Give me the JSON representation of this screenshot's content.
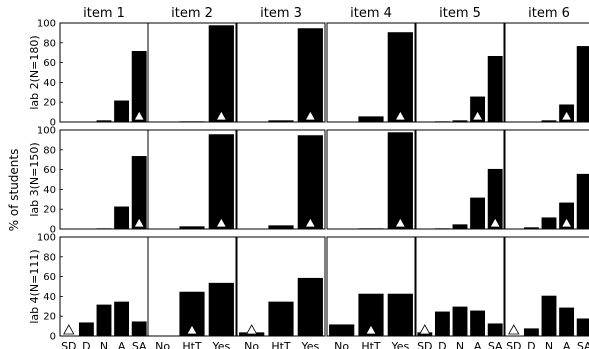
{
  "chart_data": {
    "type": "bar",
    "ylabel": "% of students",
    "ylim": [
      0,
      100
    ],
    "yticks": [
      0,
      20,
      40,
      60,
      80,
      100
    ],
    "columns": [
      "item 1",
      "item 2",
      "item 3",
      "item 4",
      "item 5",
      "item 6"
    ],
    "rows": [
      "lab 2(N=180)",
      "lab 3(N=150)",
      "lab 4(N=111)"
    ],
    "category_sets": {
      "likert": [
        "SD",
        "D",
        "N",
        "A",
        "SA"
      ],
      "yesno": [
        "No",
        "HtT",
        "Yes"
      ]
    },
    "column_category_set": [
      "likert",
      "yesno",
      "yesno",
      "yesno",
      "likert",
      "likert"
    ],
    "bar_color": "#000000",
    "marker_color": "#ffffff",
    "grid": false,
    "panels": [
      [
        {
          "values": [
            0,
            0,
            2,
            22,
            72
          ],
          "marker": 4
        },
        {
          "values": [
            0,
            1,
            98
          ],
          "marker": 2
        },
        {
          "values": [
            0,
            2,
            95
          ],
          "marker": 2
        },
        {
          "values": [
            0,
            6,
            91
          ],
          "marker": 2
        },
        {
          "values": [
            0,
            1,
            2,
            26,
            67
          ],
          "marker": 3
        },
        {
          "values": [
            0,
            0,
            2,
            18,
            77
          ],
          "marker": 3
        }
      ],
      [
        {
          "values": [
            0,
            0,
            1,
            23,
            74
          ],
          "marker": 4
        },
        {
          "values": [
            0,
            3,
            96
          ],
          "marker": 2
        },
        {
          "values": [
            0,
            4,
            95
          ],
          "marker": 2
        },
        {
          "values": [
            0,
            1,
            98
          ],
          "marker": 2
        },
        {
          "values": [
            0,
            1,
            5,
            32,
            61
          ],
          "marker": 4
        },
        {
          "values": [
            0,
            2,
            12,
            27,
            56
          ],
          "marker": 3
        }
      ],
      [
        {
          "values": [
            0,
            14,
            32,
            35,
            15
          ],
          "marker": 0
        },
        {
          "values": [
            0,
            45,
            54
          ],
          "marker": 1
        },
        {
          "values": [
            4,
            35,
            59
          ],
          "marker": 0
        },
        {
          "values": [
            12,
            43,
            43
          ],
          "marker": 1
        },
        {
          "values": [
            4,
            25,
            30,
            26,
            13
          ],
          "marker": 0
        },
        {
          "values": [
            0,
            8,
            41,
            29,
            18
          ],
          "marker": 0
        }
      ]
    ]
  }
}
